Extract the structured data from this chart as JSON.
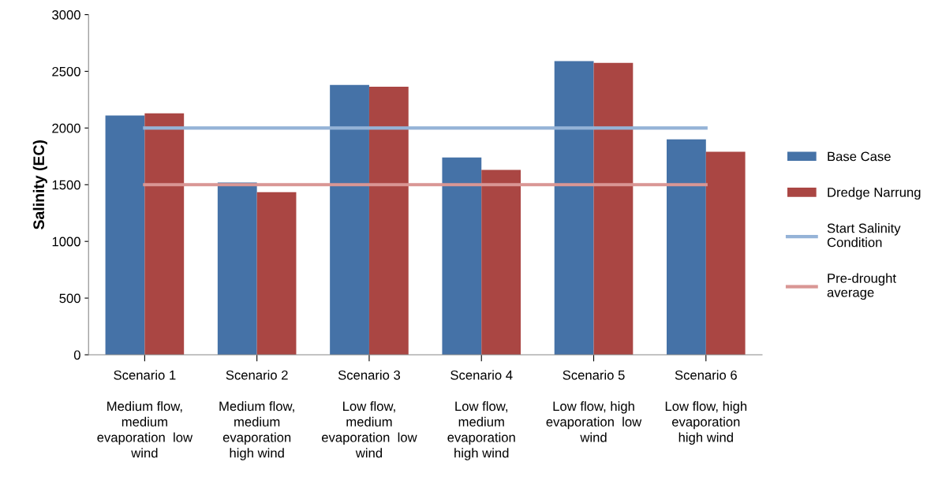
{
  "chart_data": {
    "type": "bar",
    "ylabel": "Salinity (EC)",
    "categories": [
      "Scenario 1\n\nMedium flow,\nmedium\nevaporation  low\nwind",
      "Scenario 2\n\nMedium flow,\nmedium\nevaporation\nhigh wind",
      "Scenario 3\n\nLow flow,\nmedium\nevaporation  low\nwind",
      "Scenario 4\n\nLow flow,\nmedium\nevaporation\nhigh wind",
      "Scenario 5\n\nLow flow, high\nevaporation  low\nwind",
      "Scenario 6\n\nLow flow, high\nevaporation\nhigh wind"
    ],
    "series": [
      {
        "name": "Base Case",
        "color": "#4572a7",
        "values": [
          2110,
          1520,
          2380,
          1740,
          2590,
          1900
        ]
      },
      {
        "name": "Dredge Narrung",
        "color": "#aa4643",
        "values": [
          2130,
          1435,
          2365,
          1630,
          2575,
          1790
        ]
      },
      {
        "name": "Start Salinity\nCondition",
        "type": "line",
        "color": "#95b3d7",
        "values": [
          2000,
          2000,
          2000,
          2000,
          2000,
          2000
        ]
      },
      {
        "name": "Pre-drought\naverage",
        "type": "line",
        "color": "#d99694",
        "values": [
          1500,
          1500,
          1500,
          1500,
          1500,
          1500
        ]
      }
    ],
    "ylim": [
      0,
      3000
    ],
    "yticks": [
      0,
      500,
      1000,
      1500,
      2000,
      2500,
      3000
    ],
    "grid": false,
    "legend": "right",
    "marker": "none",
    "line_style": "solid"
  }
}
